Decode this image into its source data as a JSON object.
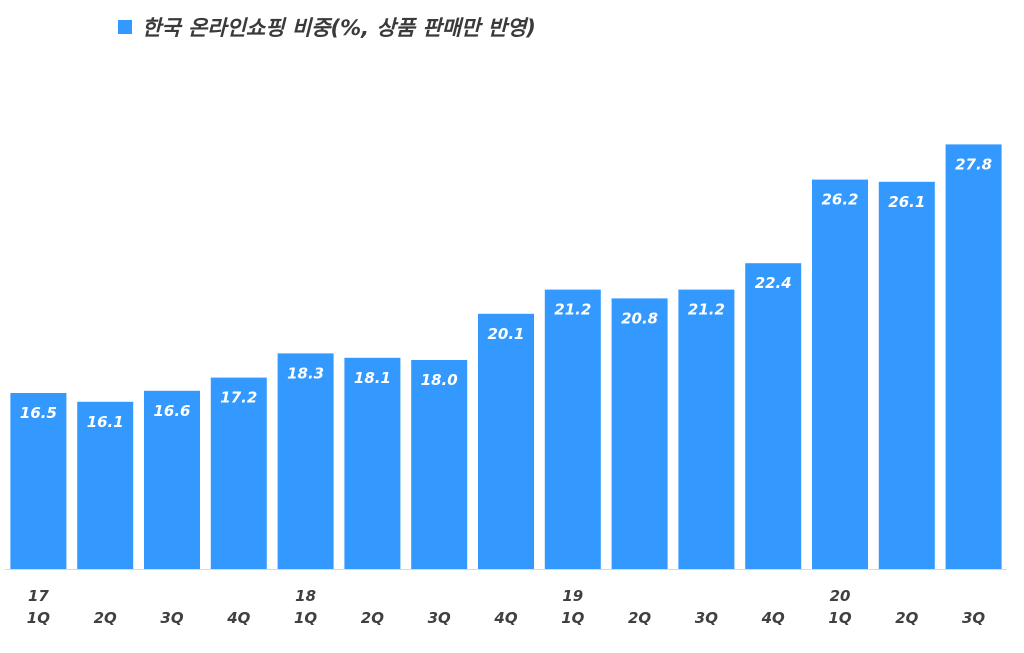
{
  "chart_data": {
    "type": "bar",
    "legend": {
      "label": "한국 온라인쇼핑 비중(%, 상품 판매만 반영)",
      "placement": "top-left"
    },
    "categories": [
      {
        "year": "17",
        "quarter": "1Q"
      },
      {
        "year": "",
        "quarter": "2Q"
      },
      {
        "year": "",
        "quarter": "3Q"
      },
      {
        "year": "",
        "quarter": "4Q"
      },
      {
        "year": "18",
        "quarter": "1Q"
      },
      {
        "year": "",
        "quarter": "2Q"
      },
      {
        "year": "",
        "quarter": "3Q"
      },
      {
        "year": "",
        "quarter": "4Q"
      },
      {
        "year": "19",
        "quarter": "1Q"
      },
      {
        "year": "",
        "quarter": "2Q"
      },
      {
        "year": "",
        "quarter": "3Q"
      },
      {
        "year": "",
        "quarter": "4Q"
      },
      {
        "year": "20",
        "quarter": "1Q"
      },
      {
        "year": "",
        "quarter": "2Q"
      },
      {
        "year": "",
        "quarter": "3Q"
      }
    ],
    "values": [
      16.5,
      16.1,
      16.6,
      17.2,
      18.3,
      18.1,
      18.0,
      20.1,
      21.2,
      20.8,
      21.2,
      22.4,
      26.2,
      26.1,
      27.8
    ],
    "value_labels": [
      "16.5",
      "16.1",
      "16.6",
      "17.2",
      "18.3",
      "18.1",
      "18.0",
      "20.1",
      "21.2",
      "20.8",
      "21.2",
      "22.4",
      "26.2",
      "26.1",
      "27.8"
    ],
    "ylim": [
      8.5,
      28.9
    ],
    "grid": false,
    "colors": {
      "bar": "#3399ff",
      "axis": "#d9d9d9"
    }
  }
}
